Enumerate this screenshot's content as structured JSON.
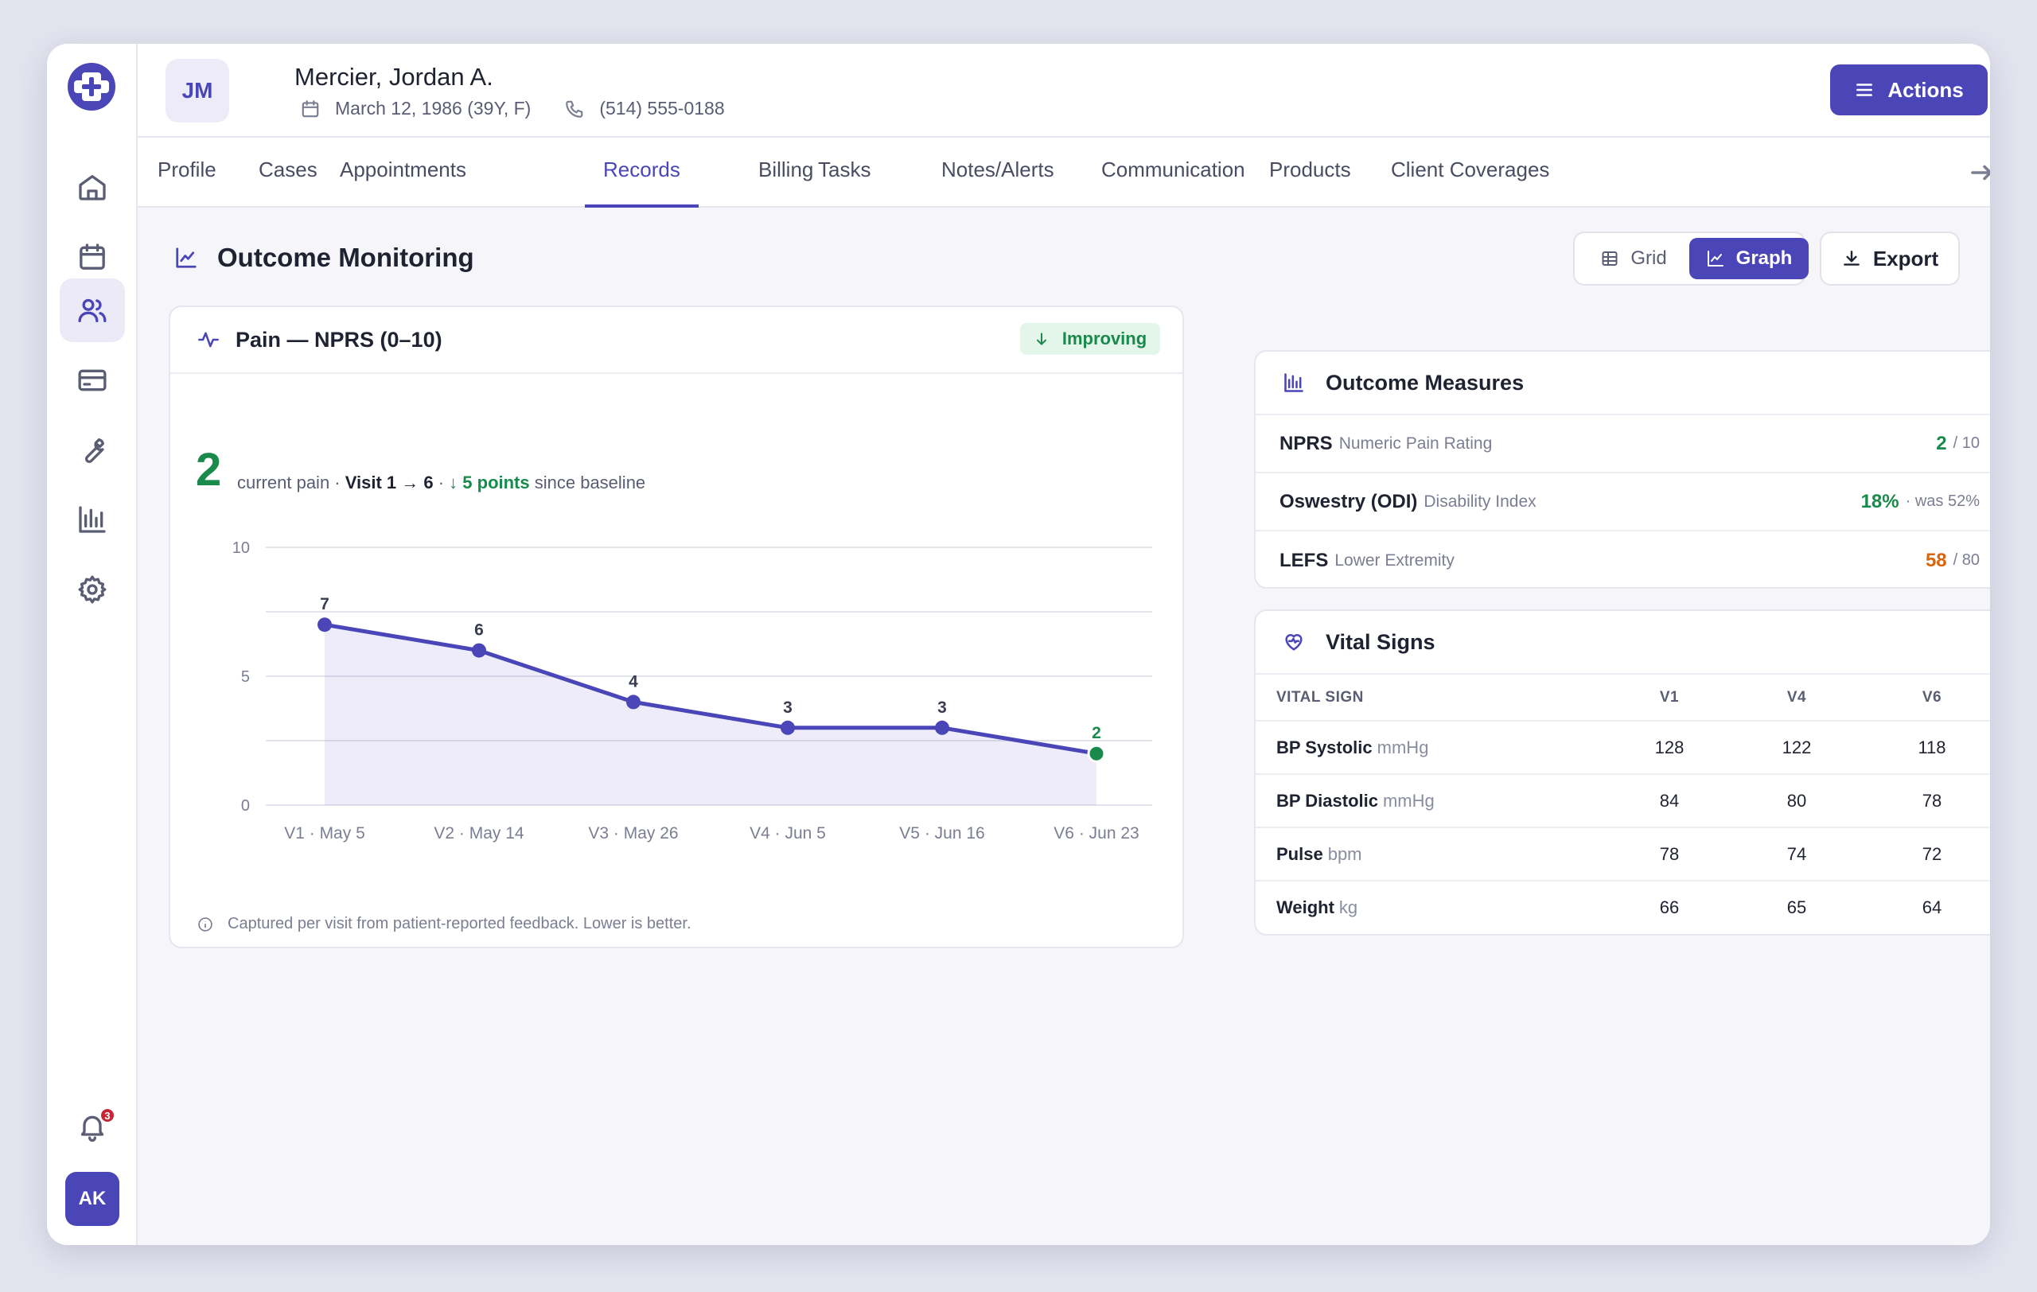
{
  "colors": {
    "accent": "#4b46b8",
    "success": "#198a4b",
    "warning": "#d9640c",
    "danger": "#c72536"
  },
  "sidebar": {
    "items": [
      {
        "icon": "home-icon"
      },
      {
        "icon": "calendar-icon"
      },
      {
        "icon": "users-icon",
        "active": true
      },
      {
        "icon": "credit-card-icon"
      },
      {
        "icon": "wrench-icon"
      },
      {
        "icon": "bar-chart-icon"
      },
      {
        "icon": "gear-icon"
      }
    ],
    "notification_count": "3",
    "user_initials": "AK"
  },
  "patient": {
    "initials": "JM",
    "name": "Mercier, Jordan A.",
    "dob": "March 12, 1986 (39Y, F)",
    "phone": "(514) 555-0188"
  },
  "header": {
    "actions_label": "Actions"
  },
  "tabs": [
    {
      "label": "Profile"
    },
    {
      "label": "Cases"
    },
    {
      "label": "Appointments"
    },
    {
      "label": "Records",
      "active": true
    },
    {
      "label": "Billing"
    },
    {
      "label": "Tasks"
    },
    {
      "label": "Notes/Alerts"
    },
    {
      "label": "Communication"
    },
    {
      "label": "Products"
    },
    {
      "label": "Client Coverages"
    }
  ],
  "section": {
    "title": "Outcome Monitoring",
    "view_grid": "Grid",
    "view_graph": "Graph",
    "view_selected": "Graph",
    "export_label": "Export"
  },
  "pain": {
    "title": "Pain — NPRS (0–10)",
    "badge": "Improving",
    "current": "2",
    "current_label": "current pain · ",
    "visit_range": "Visit 1 → 6",
    "sep": " · ",
    "change": "↓ 5 points",
    "change_suffix": " since baseline",
    "footnote": "Captured per visit from patient-reported feedback. Lower is better."
  },
  "chart_data": {
    "type": "area",
    "categories": [
      "V1 · May 5",
      "V2 · May 14",
      "V3 · May 26",
      "V4 · Jun 5",
      "V5 · Jun 16",
      "V6 · Jun 23"
    ],
    "values": [
      7,
      6,
      4,
      3,
      3,
      2
    ],
    "ylim": [
      0,
      10
    ],
    "yticks": [
      0,
      5,
      10
    ],
    "grid": true,
    "line_color": "#4b46b8",
    "last_point_color": "#198a4b"
  },
  "measures": {
    "title": "Outcome Measures",
    "rows": [
      {
        "name": "NPRS",
        "sub": "Numeric Pain Rating",
        "value": "2",
        "suffix": "/ 10",
        "color": "#198a4b"
      },
      {
        "name": "Oswestry (ODI)",
        "sub": "Disability Index",
        "value": "18%",
        "suffix": "· was 52%",
        "color": "#198a4b"
      },
      {
        "name": "LEFS",
        "sub": "Lower Extremity",
        "value": "58",
        "suffix": "/ 80",
        "color": "#d9640c"
      }
    ]
  },
  "vitals": {
    "title": "Vital Signs",
    "headers": [
      "Vital Sign",
      "V1",
      "V4",
      "V6"
    ],
    "rows": [
      {
        "name": "BP Systolic",
        "unit": "mmHg",
        "v1": "128",
        "v4": "122",
        "v6": "118"
      },
      {
        "name": "BP Diastolic",
        "unit": "mmHg",
        "v1": "84",
        "v4": "80",
        "v6": "78"
      },
      {
        "name": "Pulse",
        "unit": "bpm",
        "v1": "78",
        "v4": "74",
        "v6": "72"
      },
      {
        "name": "Weight",
        "unit": "kg",
        "v1": "66",
        "v4": "65",
        "v6": "64"
      }
    ]
  }
}
